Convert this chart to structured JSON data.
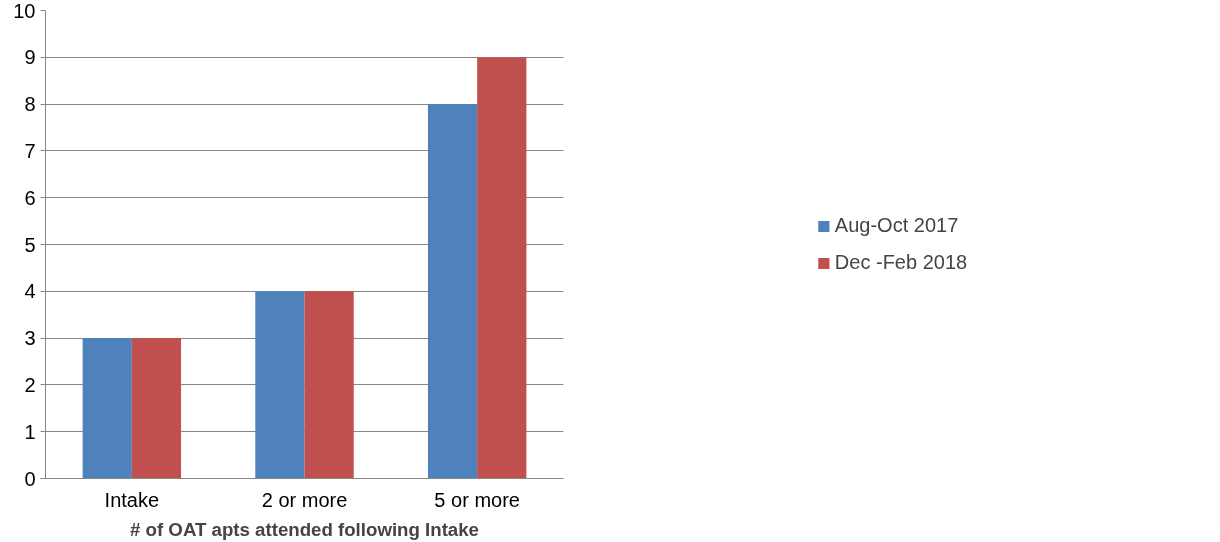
{
  "chart_data": {
    "type": "bar",
    "xlabel": "# of OAT apts attended following Intake",
    "categories": [
      "Intake",
      "2 or more",
      "5 or more"
    ],
    "series": [
      {
        "name": "Aug-Oct 2017",
        "color": "#4f81bd",
        "values": [
          3,
          4,
          8
        ]
      },
      {
        "name": "Dec -Feb 2018",
        "color": "#c0504d",
        "values": [
          3,
          4,
          9
        ]
      }
    ],
    "ylim": [
      0,
      10
    ],
    "yticks": [
      0,
      1,
      2,
      3,
      4,
      5,
      6,
      7,
      8,
      9,
      10
    ],
    "grid": "y",
    "legend": "right"
  }
}
